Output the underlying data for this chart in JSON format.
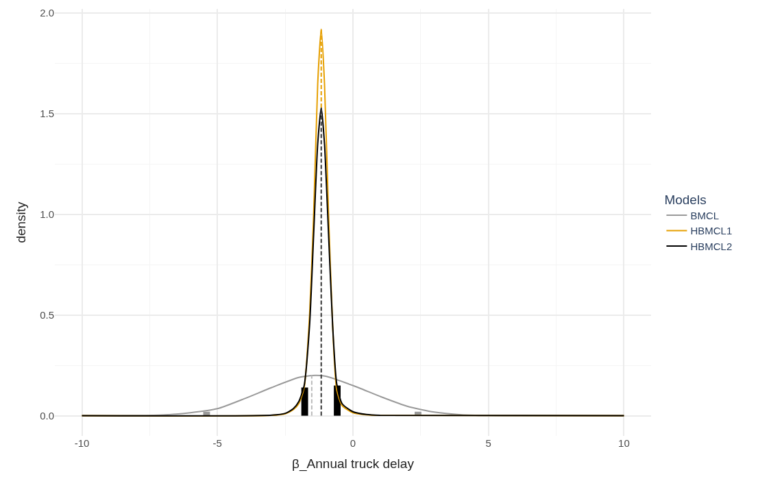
{
  "chart_data": {
    "type": "line",
    "xlabel": "β_Annual truck delay",
    "ylabel": "density",
    "legend_title": "Models",
    "legend": "right",
    "grid": true,
    "xlim": [
      -11,
      11
    ],
    "xticks": [
      -10,
      -5,
      0,
      5,
      10
    ],
    "ylim": [
      -0.1,
      2.02
    ],
    "yticks": [
      {
        "value": 0,
        "label": "0.0"
      },
      {
        "value": 0.5,
        "label": "0.5"
      },
      {
        "value": 1,
        "label": "1.0"
      },
      {
        "value": 1.5,
        "label": "1.5"
      },
      {
        "value": 2,
        "label": "2.0"
      }
    ],
    "series": [
      {
        "name": "BMCL",
        "color": "#999999",
        "x": [
          -10,
          -8,
          -7,
          -6,
          -5,
          -4,
          -3,
          -2,
          -1.4,
          -1,
          0,
          1,
          2,
          3,
          4,
          5,
          6,
          10
        ],
        "values": [
          0,
          0.001,
          0.004,
          0.015,
          0.035,
          0.085,
          0.14,
          0.19,
          0.2,
          0.196,
          0.15,
          0.096,
          0.047,
          0.018,
          0.005,
          0.001,
          0,
          0
        ]
      },
      {
        "name": "HBMCL1",
        "color": "#e69f00",
        "x": [
          -10,
          -3,
          -2.5,
          -2.2,
          -2,
          -1.8,
          -1.6,
          -1.45,
          -1.3,
          -1.17,
          -1.05,
          -0.9,
          -0.75,
          -0.6,
          -0.4,
          0,
          0.5,
          1,
          10
        ],
        "values": [
          0,
          0.002,
          0.01,
          0.03,
          0.06,
          0.14,
          0.5,
          1,
          1.65,
          1.92,
          1.65,
          1,
          0.45,
          0.13,
          0.05,
          0.015,
          0.005,
          0.002,
          0
        ]
      },
      {
        "name": "HBMCL2",
        "color": "#000000",
        "x": [
          -10,
          -3,
          -2.5,
          -2.2,
          -2,
          -1.8,
          -1.6,
          -1.45,
          -1.3,
          -1.17,
          -1.05,
          -0.9,
          -0.75,
          -0.6,
          -0.4,
          0,
          0.5,
          1,
          10
        ],
        "values": [
          0,
          0.003,
          0.012,
          0.035,
          0.07,
          0.15,
          0.45,
          0.9,
          1.35,
          1.53,
          1.35,
          0.9,
          0.45,
          0.16,
          0.06,
          0.02,
          0.006,
          0.002,
          0
        ]
      },
      {
        "type": "line",
        "line_style": "dashed",
        "color": "#bbbbbb",
        "x": [
          -1.52,
          -1.52
        ],
        "values": [
          0,
          0.2
        ]
      },
      {
        "type": "line",
        "line_style": "dashed",
        "color": "#e69f00",
        "x": [
          -1.17,
          -1.17
        ],
        "values": [
          1.53,
          1.92
        ]
      },
      {
        "type": "line",
        "line_style": "dashed",
        "color": "#333333",
        "x": [
          -1.17,
          -1.17
        ],
        "values": [
          0,
          1.53
        ]
      },
      {
        "type": "bar",
        "color": "#999999",
        "x": [
          -5.4,
          2.4
        ],
        "values": [
          0.02,
          0.02
        ]
      },
      {
        "type": "bar",
        "color": "#000000",
        "x": [
          -1.78,
          -0.58
        ],
        "values": [
          0.14,
          0.15
        ]
      }
    ]
  }
}
